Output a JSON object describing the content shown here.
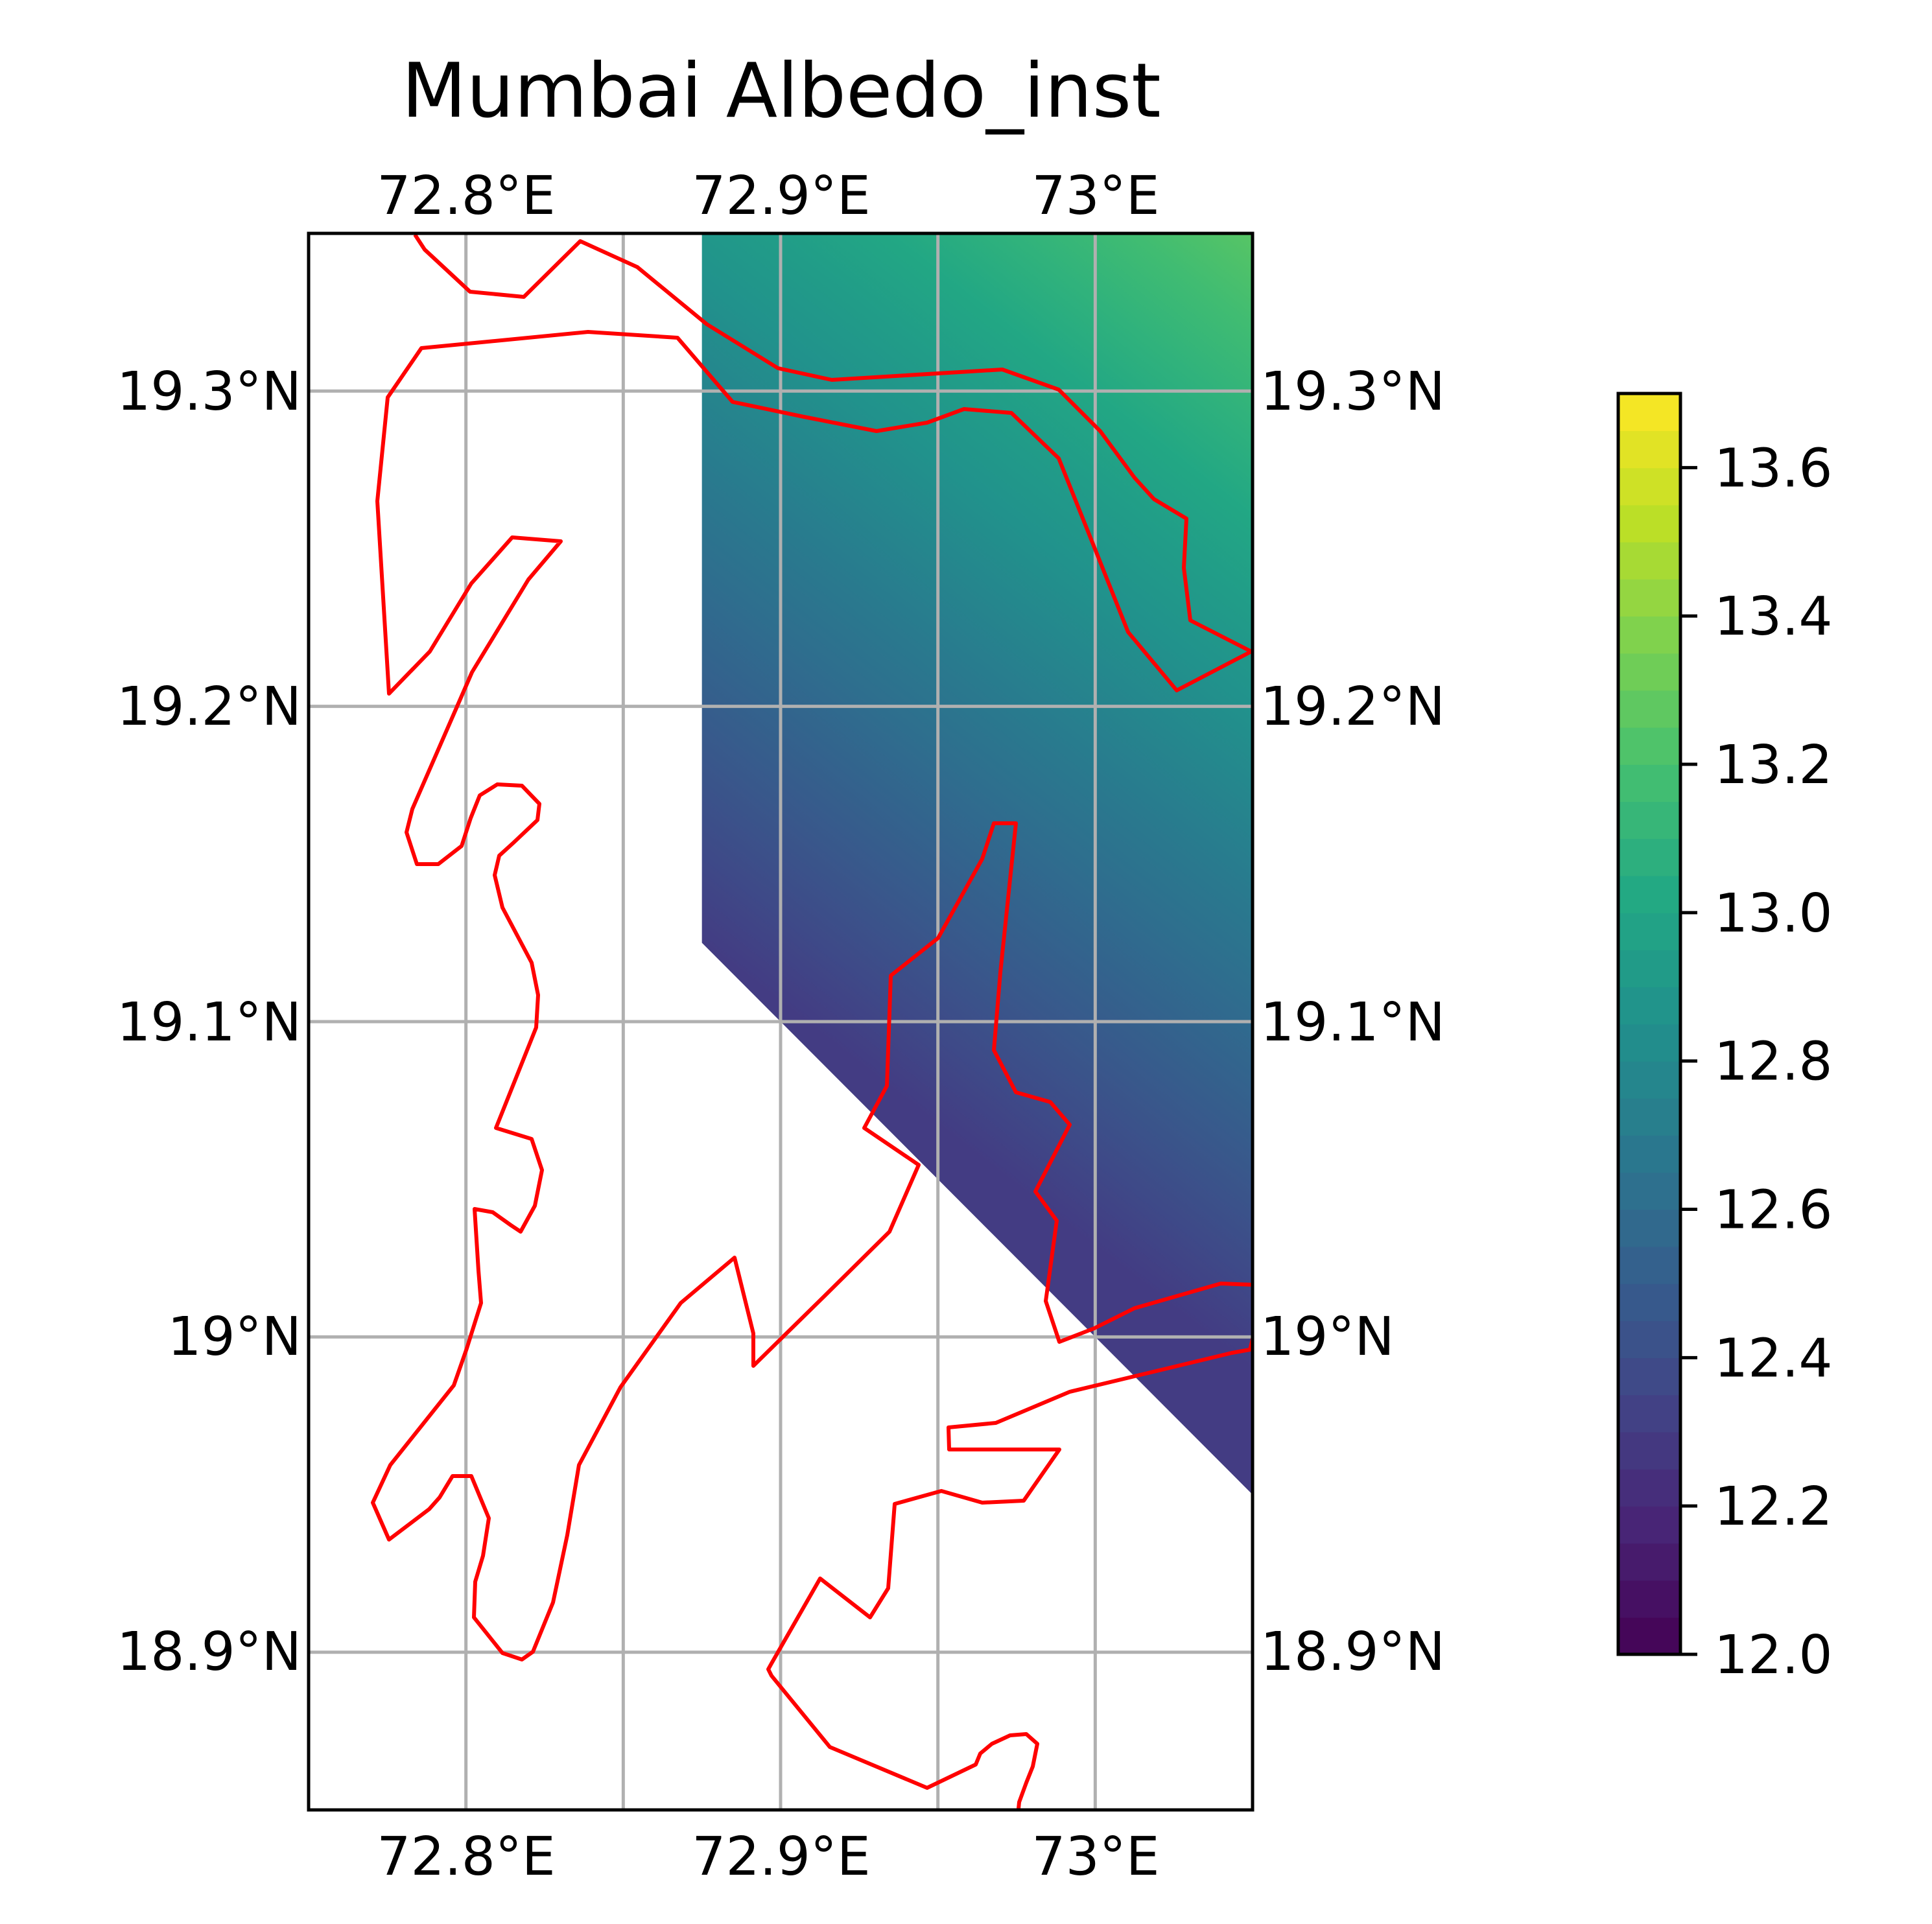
{
  "title": "Mumbai Albedo_inst",
  "axes": {
    "lon_ticks": [
      "72.8°E",
      "72.9°E",
      "73°E"
    ],
    "lat_ticks": [
      "19.3°N",
      "19.2°N",
      "19.1°N",
      "19°N",
      "18.9°N"
    ]
  },
  "colorbar": {
    "ticks": [
      "12.0",
      "12.2",
      "12.4",
      "12.6",
      "12.8",
      "13.0",
      "13.2",
      "13.4",
      "13.6"
    ]
  },
  "colors": {
    "coastline": "#ff0000",
    "grid": "#b0b0b0",
    "frame": "#000000",
    "colormap": "viridis"
  },
  "chart_data": {
    "type": "heatmap",
    "title": "Mumbai Albedo_inst",
    "x_range": [
      72.75,
      73.05
    ],
    "y_range": [
      18.85,
      19.35
    ],
    "x_ticks": [
      72.8,
      72.9,
      73.0
    ],
    "y_ticks": [
      18.9,
      19.0,
      19.1,
      19.2,
      19.3
    ],
    "colorbar_range": [
      12.0,
      13.7
    ],
    "colorbar_ticks": [
      12.0,
      12.2,
      12.4,
      12.6,
      12.8,
      13.0,
      13.2,
      13.4,
      13.6
    ],
    "colormap": "viridis",
    "data_extent": {
      "lon": [
        72.875,
        73.05
      ],
      "lat": [
        18.95,
        19.35
      ],
      "lower_edge_from": [
        72.875,
        19.125
      ],
      "lower_edge_to": [
        73.05,
        18.95
      ]
    },
    "gradient": {
      "min_value": 12.3,
      "min_at": [
        72.875,
        19.125
      ],
      "max_value": 13.25,
      "max_at": [
        73.05,
        19.35
      ]
    },
    "grid": true,
    "colorbar_position": "right"
  }
}
